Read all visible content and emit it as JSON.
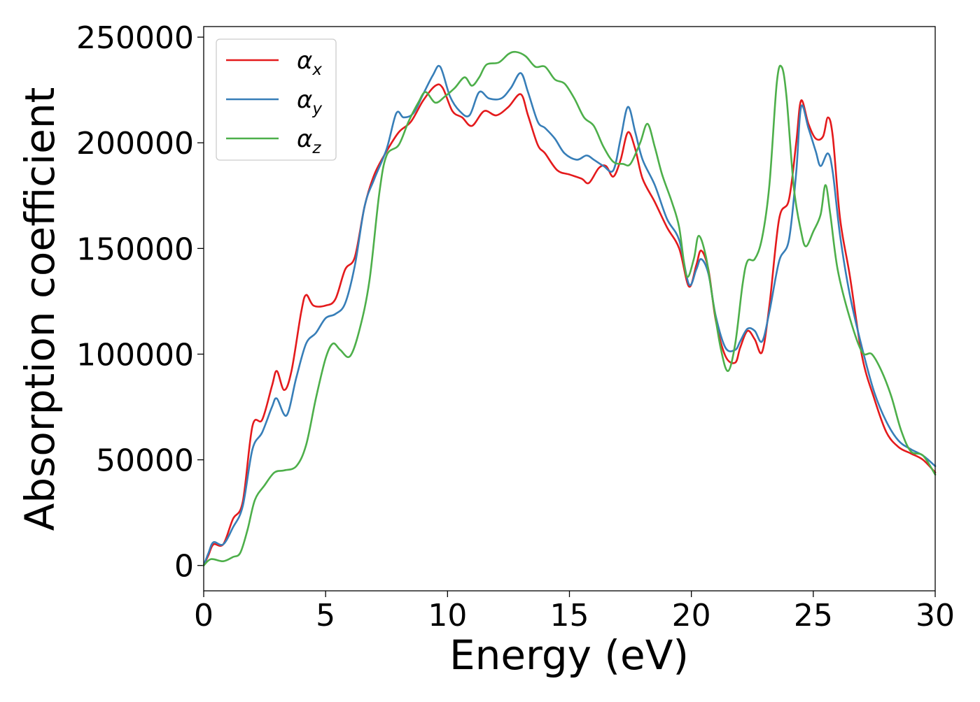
{
  "chart_data": {
    "type": "line",
    "title": "",
    "xlabel": "Energy (eV)",
    "ylabel": "Absorption coefficient",
    "xlim": [
      0,
      30
    ],
    "ylim": [
      -12000,
      255000
    ],
    "xticks": [
      0,
      5,
      10,
      15,
      20,
      25,
      30
    ],
    "xtick_labels": [
      "0",
      "5",
      "10",
      "15",
      "20",
      "25",
      "30"
    ],
    "yticks": [
      0,
      50000,
      100000,
      150000,
      200000,
      250000
    ],
    "ytick_labels": [
      "0",
      "50000",
      "100000",
      "150000",
      "200000",
      "250000"
    ],
    "grid": false,
    "legend_position": "top-left",
    "series": [
      {
        "name": "α_x",
        "legend_base": "α",
        "legend_sub": "x",
        "color": "#e41a1c",
        "points": [
          [
            0,
            0
          ],
          [
            0.2,
            5000
          ],
          [
            0.4,
            10000
          ],
          [
            0.8,
            10000
          ],
          [
            1.2,
            22000
          ],
          [
            1.6,
            30000
          ],
          [
            2.0,
            66000
          ],
          [
            2.4,
            69000
          ],
          [
            2.8,
            85000
          ],
          [
            3.0,
            92000
          ],
          [
            3.3,
            83000
          ],
          [
            3.6,
            92000
          ],
          [
            4.0,
            120000
          ],
          [
            4.2,
            128000
          ],
          [
            4.5,
            123000
          ],
          [
            5.0,
            123000
          ],
          [
            5.4,
            126000
          ],
          [
            5.8,
            140000
          ],
          [
            6.2,
            146000
          ],
          [
            6.6,
            170000
          ],
          [
            7.0,
            185000
          ],
          [
            7.5,
            196000
          ],
          [
            8.0,
            205000
          ],
          [
            8.5,
            210000
          ],
          [
            9.0,
            220000
          ],
          [
            9.5,
            227000
          ],
          [
            9.8,
            226000
          ],
          [
            10.2,
            215000
          ],
          [
            10.6,
            212000
          ],
          [
            11.0,
            208000
          ],
          [
            11.5,
            215000
          ],
          [
            12.0,
            213000
          ],
          [
            12.5,
            217000
          ],
          [
            13.0,
            223000
          ],
          [
            13.3,
            213000
          ],
          [
            13.7,
            199000
          ],
          [
            14.0,
            195000
          ],
          [
            14.5,
            187000
          ],
          [
            15.0,
            185000
          ],
          [
            15.5,
            183000
          ],
          [
            15.8,
            181000
          ],
          [
            16.2,
            188000
          ],
          [
            16.5,
            189000
          ],
          [
            16.8,
            184000
          ],
          [
            17.1,
            192000
          ],
          [
            17.4,
            205000
          ],
          [
            17.7,
            197000
          ],
          [
            18.0,
            183000
          ],
          [
            18.5,
            172000
          ],
          [
            19.0,
            160000
          ],
          [
            19.5,
            150000
          ],
          [
            19.9,
            132000
          ],
          [
            20.2,
            142000
          ],
          [
            20.4,
            149000
          ],
          [
            20.7,
            140000
          ],
          [
            21.0,
            116000
          ],
          [
            21.4,
            99000
          ],
          [
            21.8,
            96000
          ],
          [
            22.0,
            103000
          ],
          [
            22.3,
            111000
          ],
          [
            22.6,
            107000
          ],
          [
            22.9,
            101000
          ],
          [
            23.2,
            123000
          ],
          [
            23.6,
            164000
          ],
          [
            24.0,
            173000
          ],
          [
            24.3,
            200000
          ],
          [
            24.5,
            220000
          ],
          [
            24.8,
            209000
          ],
          [
            25.1,
            202000
          ],
          [
            25.4,
            203000
          ],
          [
            25.6,
            212000
          ],
          [
            25.8,
            203000
          ],
          [
            26.1,
            164000
          ],
          [
            26.5,
            137000
          ],
          [
            27.0,
            99000
          ],
          [
            27.5,
            79000
          ],
          [
            28.0,
            63000
          ],
          [
            28.5,
            56000
          ],
          [
            29.0,
            53000
          ],
          [
            29.5,
            50000
          ],
          [
            30.0,
            44000
          ]
        ]
      },
      {
        "name": "α_y",
        "legend_base": "α",
        "legend_sub": "y",
        "color": "#377eb8",
        "points": [
          [
            0,
            0
          ],
          [
            0.2,
            6000
          ],
          [
            0.4,
            11000
          ],
          [
            0.8,
            10000
          ],
          [
            1.2,
            18000
          ],
          [
            1.6,
            28000
          ],
          [
            2.0,
            55000
          ],
          [
            2.4,
            63000
          ],
          [
            2.8,
            75000
          ],
          [
            3.0,
            79000
          ],
          [
            3.4,
            71000
          ],
          [
            3.8,
            89000
          ],
          [
            4.2,
            105000
          ],
          [
            4.6,
            110000
          ],
          [
            5.0,
            117000
          ],
          [
            5.4,
            119000
          ],
          [
            5.8,
            124000
          ],
          [
            6.2,
            142000
          ],
          [
            6.6,
            170000
          ],
          [
            7.0,
            183000
          ],
          [
            7.5,
            197000
          ],
          [
            7.9,
            214000
          ],
          [
            8.2,
            212000
          ],
          [
            8.6,
            214000
          ],
          [
            9.0,
            223000
          ],
          [
            9.4,
            232000
          ],
          [
            9.7,
            236000
          ],
          [
            10.1,
            222000
          ],
          [
            10.5,
            215000
          ],
          [
            10.9,
            213000
          ],
          [
            11.3,
            224000
          ],
          [
            11.7,
            221000
          ],
          [
            12.2,
            221000
          ],
          [
            12.6,
            226000
          ],
          [
            13.0,
            233000
          ],
          [
            13.3,
            224000
          ],
          [
            13.7,
            210000
          ],
          [
            14.0,
            207000
          ],
          [
            14.4,
            202000
          ],
          [
            14.8,
            195000
          ],
          [
            15.3,
            192000
          ],
          [
            15.7,
            194000
          ],
          [
            16.0,
            192000
          ],
          [
            16.4,
            189000
          ],
          [
            16.8,
            187000
          ],
          [
            17.1,
            202000
          ],
          [
            17.4,
            217000
          ],
          [
            17.7,
            205000
          ],
          [
            18.0,
            192000
          ],
          [
            18.5,
            180000
          ],
          [
            19.0,
            164000
          ],
          [
            19.5,
            154000
          ],
          [
            19.9,
            133000
          ],
          [
            20.2,
            140000
          ],
          [
            20.4,
            145000
          ],
          [
            20.7,
            138000
          ],
          [
            21.0,
            118000
          ],
          [
            21.4,
            103000
          ],
          [
            21.8,
            102000
          ],
          [
            22.0,
            106000
          ],
          [
            22.3,
            112000
          ],
          [
            22.6,
            111000
          ],
          [
            22.9,
            106000
          ],
          [
            23.2,
            120000
          ],
          [
            23.6,
            144000
          ],
          [
            24.0,
            154000
          ],
          [
            24.3,
            186000
          ],
          [
            24.5,
            217000
          ],
          [
            24.8,
            207000
          ],
          [
            25.1,
            196000
          ],
          [
            25.3,
            189000
          ],
          [
            25.6,
            195000
          ],
          [
            25.8,
            186000
          ],
          [
            26.1,
            156000
          ],
          [
            26.5,
            128000
          ],
          [
            27.0,
            103000
          ],
          [
            27.5,
            82000
          ],
          [
            28.0,
            68000
          ],
          [
            28.5,
            59000
          ],
          [
            29.0,
            55000
          ],
          [
            29.5,
            52000
          ],
          [
            30.0,
            47000
          ]
        ]
      },
      {
        "name": "α_z",
        "legend_base": "α",
        "legend_sub": "z",
        "color": "#4daf4a",
        "points": [
          [
            0,
            0
          ],
          [
            0.3,
            3000
          ],
          [
            0.8,
            2000
          ],
          [
            1.2,
            4000
          ],
          [
            1.5,
            6000
          ],
          [
            1.8,
            17000
          ],
          [
            2.1,
            31000
          ],
          [
            2.5,
            38000
          ],
          [
            2.9,
            44000
          ],
          [
            3.3,
            45000
          ],
          [
            3.8,
            47000
          ],
          [
            4.2,
            57000
          ],
          [
            4.6,
            79000
          ],
          [
            5.0,
            98000
          ],
          [
            5.3,
            105000
          ],
          [
            5.6,
            102000
          ],
          [
            6.0,
            99000
          ],
          [
            6.4,
            112000
          ],
          [
            6.8,
            135000
          ],
          [
            7.2,
            176000
          ],
          [
            7.5,
            194000
          ],
          [
            8.0,
            199000
          ],
          [
            8.4,
            210000
          ],
          [
            8.8,
            219000
          ],
          [
            9.1,
            224000
          ],
          [
            9.5,
            219000
          ],
          [
            9.9,
            222000
          ],
          [
            10.3,
            226000
          ],
          [
            10.7,
            231000
          ],
          [
            11.0,
            227000
          ],
          [
            11.3,
            231000
          ],
          [
            11.6,
            237000
          ],
          [
            12.1,
            238000
          ],
          [
            12.5,
            242000
          ],
          [
            12.8,
            243000
          ],
          [
            13.2,
            241000
          ],
          [
            13.6,
            236000
          ],
          [
            14.0,
            236000
          ],
          [
            14.4,
            230000
          ],
          [
            14.8,
            228000
          ],
          [
            15.2,
            221000
          ],
          [
            15.6,
            212000
          ],
          [
            16.0,
            208000
          ],
          [
            16.4,
            198000
          ],
          [
            16.8,
            191000
          ],
          [
            17.2,
            190000
          ],
          [
            17.5,
            190000
          ],
          [
            17.9,
            200000
          ],
          [
            18.2,
            209000
          ],
          [
            18.5,
            198000
          ],
          [
            18.8,
            185000
          ],
          [
            19.2,
            172000
          ],
          [
            19.5,
            160000
          ],
          [
            19.8,
            137000
          ],
          [
            20.1,
            145000
          ],
          [
            20.3,
            156000
          ],
          [
            20.6,
            146000
          ],
          [
            20.9,
            124000
          ],
          [
            21.2,
            103000
          ],
          [
            21.5,
            92000
          ],
          [
            21.8,
            105000
          ],
          [
            22.1,
            133000
          ],
          [
            22.3,
            144000
          ],
          [
            22.6,
            145000
          ],
          [
            22.9,
            155000
          ],
          [
            23.2,
            180000
          ],
          [
            23.5,
            228000
          ],
          [
            23.7,
            236000
          ],
          [
            23.9,
            222000
          ],
          [
            24.2,
            179000
          ],
          [
            24.5,
            158000
          ],
          [
            24.7,
            151000
          ],
          [
            25.0,
            158000
          ],
          [
            25.3,
            166000
          ],
          [
            25.5,
            180000
          ],
          [
            25.7,
            166000
          ],
          [
            26.0,
            140000
          ],
          [
            26.5,
            117000
          ],
          [
            27.0,
            101000
          ],
          [
            27.4,
            100000
          ],
          [
            27.8,
            92000
          ],
          [
            28.2,
            80000
          ],
          [
            28.6,
            64000
          ],
          [
            29.0,
            54000
          ],
          [
            29.5,
            52000
          ],
          [
            30.0,
            43000
          ]
        ]
      }
    ]
  }
}
